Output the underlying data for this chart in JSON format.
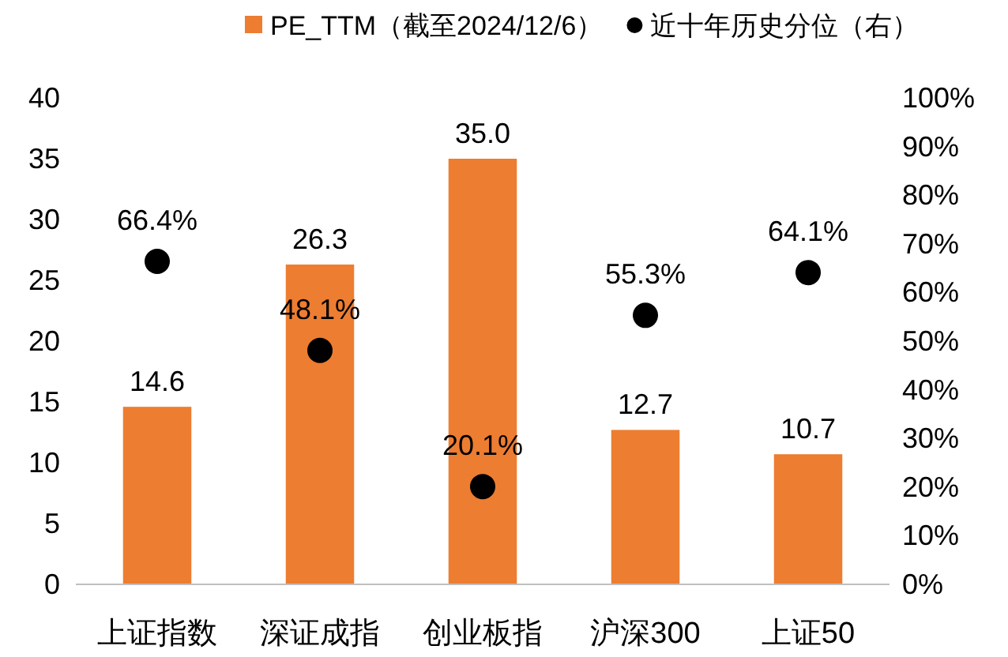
{
  "chart_data": {
    "type": "bar",
    "categories": [
      "上证指数",
      "深证成指",
      "创业板指",
      "沪深300",
      "上证50"
    ],
    "series": [
      {
        "name": "PE_TTM（截至2024/12/6）",
        "color": "#ed7d31",
        "values": [
          14.6,
          26.3,
          35.0,
          12.7,
          10.7
        ],
        "value_labels": [
          "14.6",
          "26.3",
          "35.0",
          "12.7",
          "10.7"
        ]
      },
      {
        "name": "近十年历史分位（右）",
        "type": "scatter",
        "axis": "y2",
        "color": "#000000",
        "marker": "circle",
        "values": [
          66.4,
          48.1,
          20.1,
          55.3,
          64.1
        ],
        "value_labels": [
          "66.4%",
          "48.1%",
          "20.1%",
          "55.3%",
          "64.1%"
        ]
      }
    ],
    "ylim": [
      0,
      40
    ],
    "yticks": [
      0,
      5,
      10,
      15,
      20,
      25,
      30,
      35,
      40
    ],
    "y2lim": [
      0,
      100
    ],
    "y2ticks": [
      {
        "value": 0,
        "label": "0%"
      },
      {
        "value": 10,
        "label": "10%"
      },
      {
        "value": 20,
        "label": "20%"
      },
      {
        "value": 30,
        "label": "30%"
      },
      {
        "value": 40,
        "label": "40%"
      },
      {
        "value": 50,
        "label": "50%"
      },
      {
        "value": 60,
        "label": "60%"
      },
      {
        "value": 70,
        "label": "70%"
      },
      {
        "value": 80,
        "label": "80%"
      },
      {
        "value": 90,
        "label": "90%"
      },
      {
        "value": 100,
        "label": "100%"
      }
    ],
    "legend": "top",
    "grid": false
  }
}
